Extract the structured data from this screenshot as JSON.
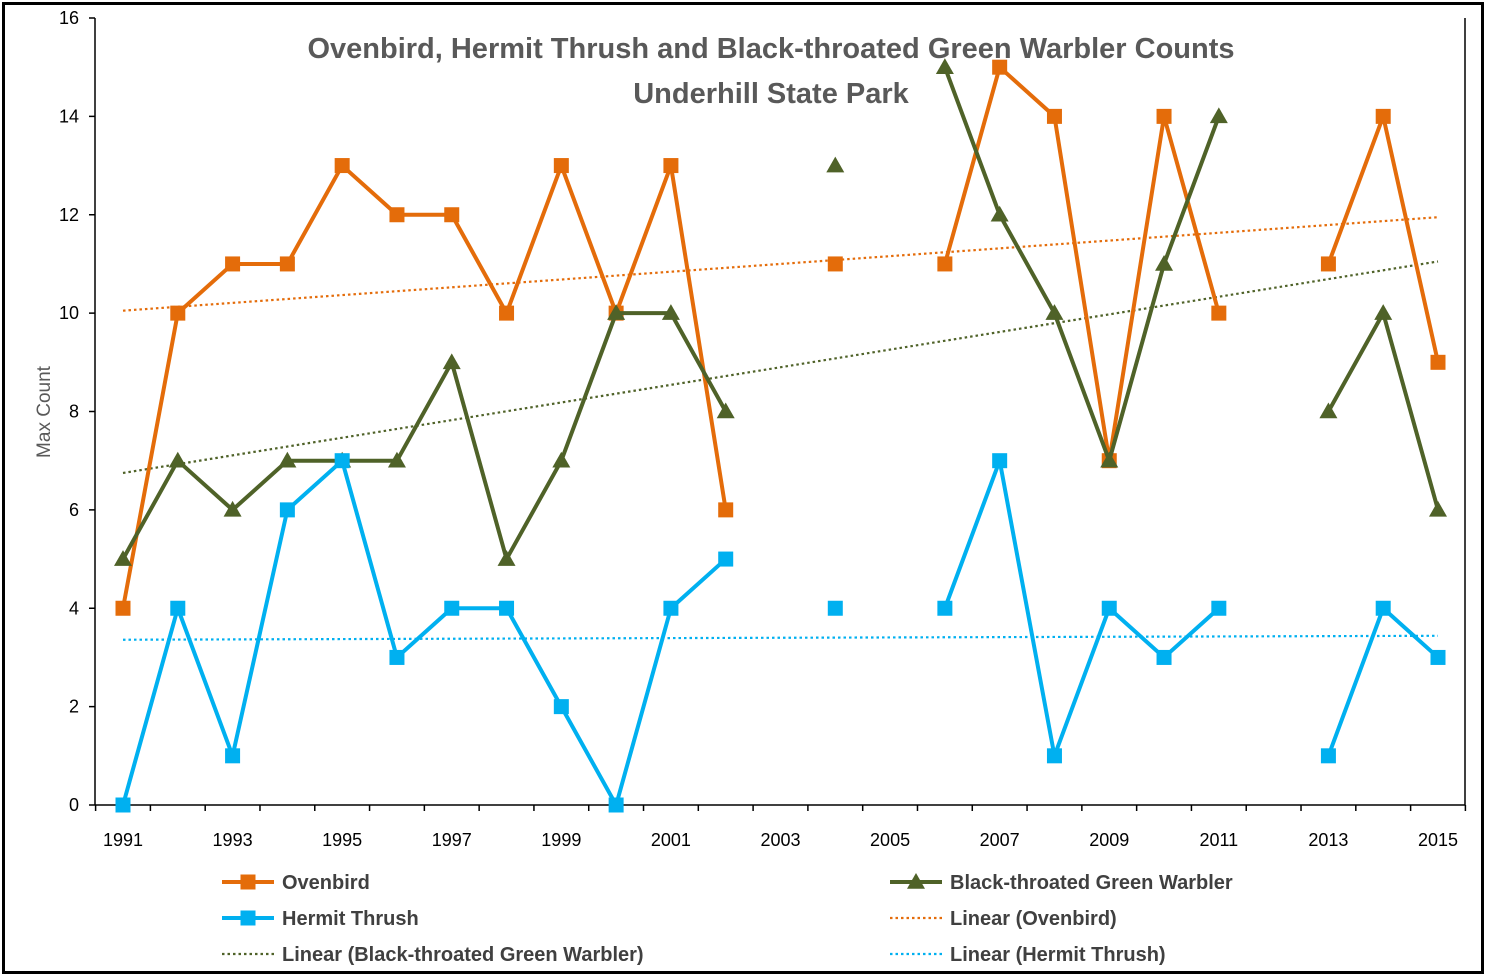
{
  "chart_data": {
    "type": "line",
    "title": "Ovenbird, Hermit Thrush and Black-throated Green Warbler Counts",
    "subtitle": "Underhill State Park",
    "xlabel": "",
    "ylabel": "Max Count",
    "xlim": [
      1991,
      2015
    ],
    "ylim": [
      0,
      16
    ],
    "x_ticks": [
      1991,
      1993,
      1995,
      1997,
      1999,
      2001,
      2003,
      2005,
      2007,
      2009,
      2011,
      2013,
      2015
    ],
    "y_ticks": [
      0,
      2,
      4,
      6,
      8,
      10,
      12,
      14,
      16
    ],
    "grid": false,
    "legend_position": "bottom",
    "x": [
      1991,
      1992,
      1993,
      1994,
      1995,
      1996,
      1997,
      1998,
      1999,
      2000,
      2001,
      2002,
      2003,
      2004,
      2005,
      2006,
      2007,
      2008,
      2009,
      2010,
      2011,
      2012,
      2013,
      2014,
      2015
    ],
    "series": [
      {
        "name": "Ovenbird",
        "color": "#E46C0A",
        "marker": "square",
        "values": [
          4,
          10,
          11,
          11,
          13,
          12,
          12,
          10,
          13,
          10,
          13,
          6,
          null,
          11,
          null,
          11,
          15,
          14,
          7,
          14,
          10,
          null,
          11,
          14,
          9
        ]
      },
      {
        "name": "Black-throated Green Warbler",
        "color": "#4F6228",
        "marker": "triangle",
        "values": [
          5,
          7,
          6,
          7,
          7,
          7,
          9,
          5,
          7,
          10,
          10,
          8,
          null,
          13,
          null,
          15,
          12,
          10,
          7,
          11,
          14,
          null,
          8,
          10,
          6
        ]
      },
      {
        "name": "Hermit Thrush",
        "color": "#00B0F0",
        "marker": "square",
        "values": [
          0,
          4,
          1,
          6,
          7,
          3,
          4,
          4,
          2,
          0,
          4,
          5,
          null,
          4,
          null,
          4,
          7,
          1,
          4,
          3,
          4,
          null,
          1,
          4,
          3
        ]
      }
    ],
    "trendlines": [
      {
        "name": "Linear (Ovenbird)",
        "color": "#E46C0A",
        "series": "Ovenbird",
        "start": 10.05,
        "end": 11.95
      },
      {
        "name": "Linear (Black-throated Green Warbler)",
        "color": "#4F6228",
        "series": "Black-throated Green Warbler",
        "start": 6.75,
        "end": 11.05
      },
      {
        "name": "Linear (Hermit Thrush)",
        "color": "#00B0F0",
        "series": "Hermit Thrush",
        "start": 3.36,
        "end": 3.44
      }
    ],
    "legend": [
      {
        "label": "Ovenbird",
        "kind": "line-marker",
        "series": 0
      },
      {
        "label": "Black-throated Green Warbler",
        "kind": "line-marker",
        "series": 1
      },
      {
        "label": "Hermit Thrush",
        "kind": "line-marker",
        "series": 2
      },
      {
        "label": "Linear (Ovenbird)",
        "kind": "trend",
        "trend": 0
      },
      {
        "label": "Linear (Black-throated Green Warbler)",
        "kind": "trend",
        "trend": 1
      },
      {
        "label": "Linear (Hermit Thrush)",
        "kind": "trend",
        "trend": 2
      }
    ]
  }
}
